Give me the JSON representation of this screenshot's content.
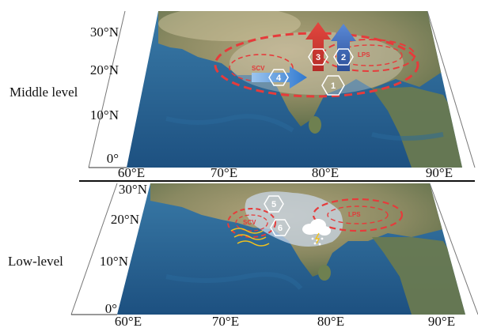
{
  "levels": {
    "middle": {
      "label": "Middle level",
      "lat_ticks": [
        "30°N",
        "20°N",
        "10°N",
        "0°"
      ],
      "lon_ticks": [
        "60°E",
        "70°E",
        "80°E",
        "90°E"
      ],
      "features": {
        "scv": "SCV",
        "lps": "LPS"
      },
      "markers": [
        "1",
        "2",
        "3",
        "4"
      ],
      "arrow_colors": {
        "up_red": "#d93a34",
        "up_blue": "#3f6fc0",
        "east_blue": "#3b7fd0"
      }
    },
    "low": {
      "label": "Low-level",
      "lat_ticks": [
        "30°N",
        "20°N",
        "10°N",
        "0°"
      ],
      "lon_ticks": [
        "60°E",
        "70°E",
        "80°E",
        "90°E"
      ],
      "features": {
        "scv": "SCV",
        "lps": "LPS"
      },
      "markers": [
        "5",
        "6"
      ],
      "symbols": [
        "rain-cloud-icon",
        "wind-lines-icon"
      ]
    }
  },
  "colors": {
    "ellipse": "#e63b3b",
    "ocean": "#1f5f93",
    "land": "#8c8a5c"
  }
}
